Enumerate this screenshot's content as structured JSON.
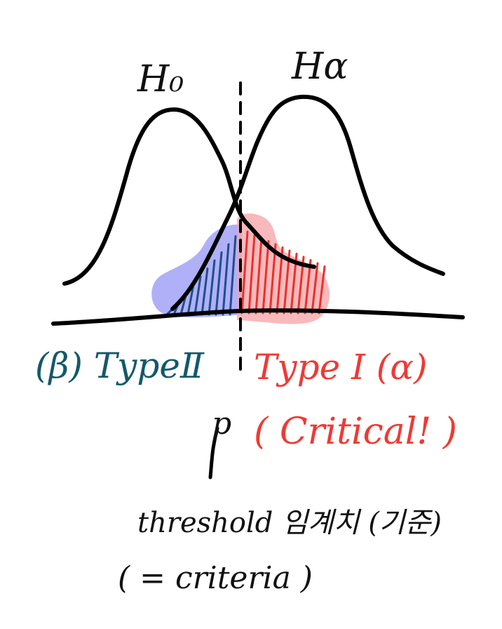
{
  "labels": {
    "h0": "H₀",
    "ha": "Hα",
    "type2": "(β) TypeⅡ",
    "type1": "Type Ⅰ (α)",
    "critical": "( Critical! )",
    "p": "p",
    "threshold": "threshold 임계치 (기준)",
    "criteria": "( = criteria )"
  },
  "colors": {
    "background": "#ffffff",
    "ink": "#111111",
    "type2_text": "#14586b",
    "type2_fill": "#6f6ff2",
    "type2_hatch": "#1f4f8a",
    "type1_text": "#ee3a35",
    "type1_fill": "#f6a2a5",
    "type1_hatch": "#e8312c"
  }
}
